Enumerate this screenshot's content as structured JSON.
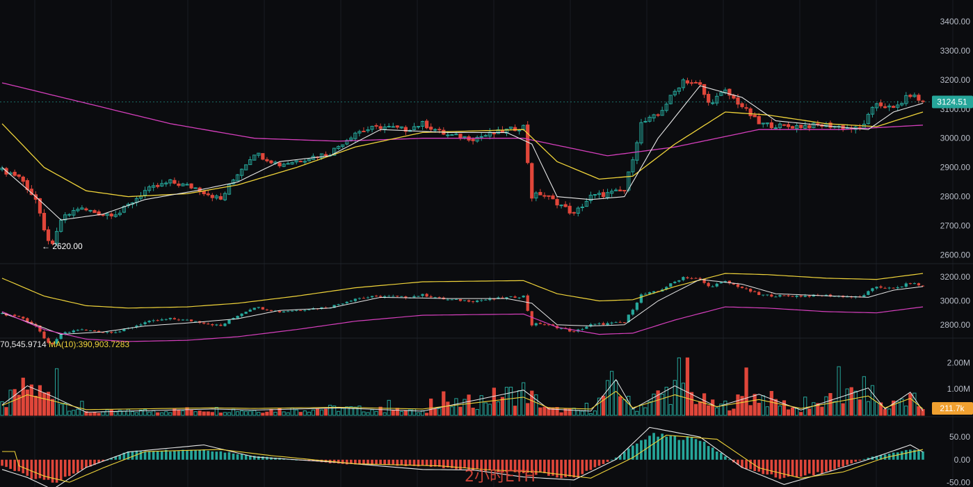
{
  "colors": {
    "up": "#26a69a",
    "down": "#e0463a",
    "ma_short": "#e8e8e8",
    "ma_mid": "#f0d43a",
    "ma_long": "#d63fbd",
    "grid": "#1a1d23",
    "price_badge": "#26a69a",
    "vol_badge": "#f0a030"
  },
  "price_panel": {
    "y_ticks": [
      "3400.00",
      "3300.00",
      "3200.00",
      "3100.00",
      "3000.00",
      "2900.00",
      "2800.00",
      "2700.00",
      "2600.00"
    ],
    "ylim": [
      2575,
      3450
    ],
    "last_price": "3124.51",
    "low_marker": "← 2620.00"
  },
  "mini_panel": {
    "y_ticks": [
      "3200.00",
      "3000.00",
      "2800.00"
    ],
    "ylim": [
      2700,
      3300
    ]
  },
  "volume_panel": {
    "ma_label_left": "70,545.9714",
    "ma_label_right": "MA(10):390,903.7283",
    "y_ticks": [
      "2.00M",
      "1.00M"
    ],
    "last_volume": "211.7k",
    "ylim": [
      0,
      2300000
    ]
  },
  "macd_panel": {
    "y_ticks": [
      "50.00",
      "0.00",
      "-50.00"
    ],
    "ylim": [
      -60,
      70
    ]
  },
  "watermark": "2小时ETH",
  "chart_data": {
    "type": "line",
    "x_count": 220,
    "price_anchors": [
      [
        0,
        2890
      ],
      [
        4,
        2870
      ],
      [
        8,
        2790
      ],
      [
        10,
        2680
      ],
      [
        12,
        2630
      ],
      [
        14,
        2720
      ],
      [
        18,
        2760
      ],
      [
        24,
        2740
      ],
      [
        28,
        2745
      ],
      [
        34,
        2820
      ],
      [
        40,
        2850
      ],
      [
        46,
        2830
      ],
      [
        52,
        2790
      ],
      [
        56,
        2880
      ],
      [
        60,
        2950
      ],
      [
        66,
        2910
      ],
      [
        72,
        2930
      ],
      [
        78,
        2950
      ],
      [
        84,
        3020
      ],
      [
        90,
        3040
      ],
      [
        96,
        3030
      ],
      [
        100,
        3050
      ],
      [
        106,
        3010
      ],
      [
        112,
        3000
      ],
      [
        118,
        3020
      ],
      [
        124,
        3040
      ],
      [
        126,
        2800
      ],
      [
        128,
        2810
      ],
      [
        132,
        2780
      ],
      [
        136,
        2740
      ],
      [
        140,
        2800
      ],
      [
        148,
        2820
      ],
      [
        152,
        3050
      ],
      [
        156,
        3080
      ],
      [
        162,
        3200
      ],
      [
        166,
        3180
      ],
      [
        168,
        3120
      ],
      [
        172,
        3160
      ],
      [
        176,
        3110
      ],
      [
        180,
        3050
      ],
      [
        186,
        3040
      ],
      [
        196,
        3045
      ],
      [
        204,
        3030
      ],
      [
        208,
        3120
      ],
      [
        212,
        3100
      ],
      [
        216,
        3150
      ],
      [
        219,
        3124
      ]
    ],
    "ma_short_anchors": [
      [
        0,
        2900
      ],
      [
        8,
        2800
      ],
      [
        14,
        2720
      ],
      [
        24,
        2740
      ],
      [
        34,
        2790
      ],
      [
        46,
        2820
      ],
      [
        56,
        2850
      ],
      [
        66,
        2920
      ],
      [
        78,
        2940
      ],
      [
        90,
        3030
      ],
      [
        106,
        3020
      ],
      [
        120,
        3020
      ],
      [
        126,
        2980
      ],
      [
        132,
        2800
      ],
      [
        140,
        2790
      ],
      [
        148,
        2800
      ],
      [
        156,
        3000
      ],
      [
        166,
        3180
      ],
      [
        176,
        3140
      ],
      [
        184,
        3060
      ],
      [
        198,
        3040
      ],
      [
        206,
        3030
      ],
      [
        212,
        3090
      ],
      [
        219,
        3120
      ]
    ],
    "ma_mid_anchors": [
      [
        0,
        3050
      ],
      [
        10,
        2900
      ],
      [
        20,
        2820
      ],
      [
        30,
        2800
      ],
      [
        44,
        2810
      ],
      [
        56,
        2840
      ],
      [
        70,
        2900
      ],
      [
        84,
        2970
      ],
      [
        100,
        3020
      ],
      [
        124,
        3030
      ],
      [
        132,
        2920
      ],
      [
        142,
        2860
      ],
      [
        150,
        2870
      ],
      [
        160,
        2980
      ],
      [
        172,
        3090
      ],
      [
        182,
        3080
      ],
      [
        196,
        3050
      ],
      [
        208,
        3040
      ],
      [
        219,
        3090
      ]
    ],
    "ma_long_anchors": [
      [
        0,
        3190
      ],
      [
        20,
        3120
      ],
      [
        40,
        3050
      ],
      [
        60,
        3000
      ],
      [
        80,
        2990
      ],
      [
        100,
        3000
      ],
      [
        124,
        3000
      ],
      [
        144,
        2940
      ],
      [
        160,
        2970
      ],
      [
        180,
        3030
      ],
      [
        200,
        3030
      ],
      [
        219,
        3045
      ]
    ],
    "volume_anchors": [
      [
        0,
        500000
      ],
      [
        6,
        1400000
      ],
      [
        12,
        900000
      ],
      [
        20,
        150000
      ],
      [
        40,
        250000
      ],
      [
        50,
        300000
      ],
      [
        60,
        250000
      ],
      [
        80,
        350000
      ],
      [
        100,
        200000
      ],
      [
        124,
        1200000
      ],
      [
        130,
        300000
      ],
      [
        140,
        200000
      ],
      [
        146,
        1700000
      ],
      [
        150,
        300000
      ],
      [
        160,
        1400000
      ],
      [
        170,
        400000
      ],
      [
        180,
        1000000
      ],
      [
        190,
        250000
      ],
      [
        206,
        1300000
      ],
      [
        210,
        300000
      ],
      [
        216,
        1100000
      ],
      [
        219,
        211700
      ]
    ],
    "macd_anchors": [
      [
        0,
        -15
      ],
      [
        6,
        -40
      ],
      [
        12,
        -55
      ],
      [
        20,
        -20
      ],
      [
        30,
        20
      ],
      [
        48,
        25
      ],
      [
        60,
        10
      ],
      [
        80,
        -10
      ],
      [
        100,
        -15
      ],
      [
        112,
        -25
      ],
      [
        124,
        -30
      ],
      [
        136,
        -45
      ],
      [
        146,
        5
      ],
      [
        154,
        60
      ],
      [
        166,
        50
      ],
      [
        176,
        -20
      ],
      [
        186,
        -45
      ],
      [
        196,
        -30
      ],
      [
        206,
        5
      ],
      [
        216,
        25
      ],
      [
        219,
        20
      ]
    ]
  }
}
